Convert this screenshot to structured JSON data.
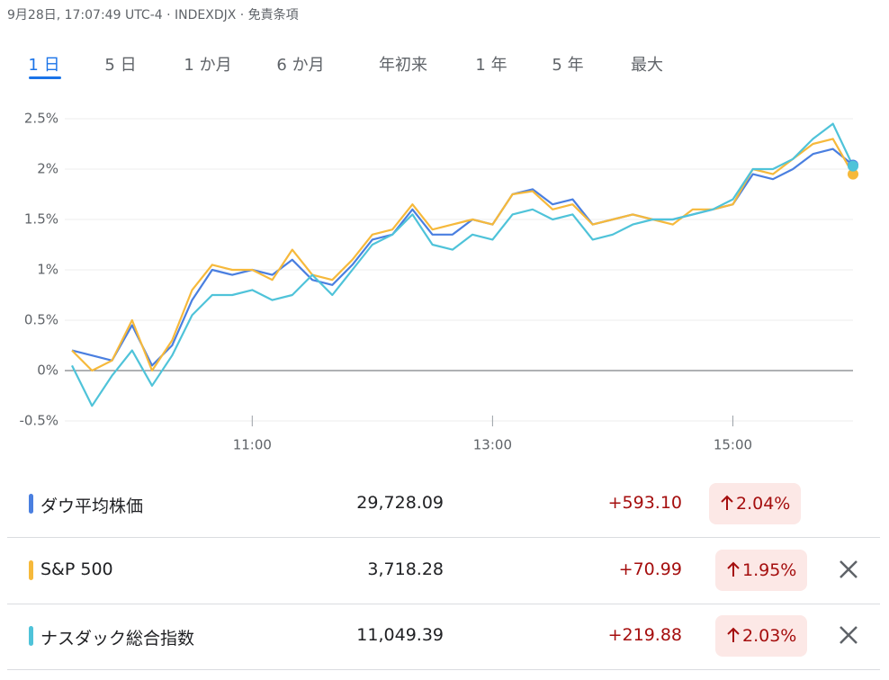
{
  "header": {
    "text": "9月28日, 17:07:49 UTC-4 · INDEXDJX · 免責条項"
  },
  "tabs": {
    "items": [
      "1 日",
      "5 日",
      "1 か月",
      "6 か月",
      "年初来",
      "1 年",
      "5 年",
      "最大"
    ],
    "selected": 0
  },
  "chart_data": {
    "type": "line",
    "x": [
      "9:30",
      "9:40",
      "9:50",
      "10:00",
      "10:10",
      "10:20",
      "10:30",
      "10:40",
      "10:50",
      "11:00",
      "11:10",
      "11:20",
      "11:30",
      "11:40",
      "11:50",
      "12:00",
      "12:10",
      "12:20",
      "12:30",
      "12:40",
      "12:50",
      "13:00",
      "13:10",
      "13:20",
      "13:30",
      "13:40",
      "13:50",
      "14:00",
      "14:10",
      "14:20",
      "14:30",
      "14:40",
      "14:50",
      "15:00",
      "15:10",
      "15:20",
      "15:30",
      "15:40",
      "15:50",
      "16:00"
    ],
    "xlim": [
      "9:30",
      "16:00"
    ],
    "xticks": [
      "11:00",
      "13:00",
      "15:00"
    ],
    "ylim": [
      -0.5,
      2.6
    ],
    "yticks": [
      {
        "value": -0.5,
        "label": "-0.5%"
      },
      {
        "value": 0,
        "label": "0%"
      },
      {
        "value": 0.5,
        "label": "0.5%"
      },
      {
        "value": 1,
        "label": "1%"
      },
      {
        "value": 1.5,
        "label": "1.5%"
      },
      {
        "value": 2,
        "label": "2%"
      },
      {
        "value": 2.5,
        "label": "2.5%"
      }
    ],
    "grid": true,
    "reference_line": 0,
    "series": [
      {
        "name": "ダウ平均株価",
        "color": "#4a7fe0",
        "values": [
          0.2,
          0.15,
          0.1,
          0.45,
          0.05,
          0.25,
          0.7,
          1.0,
          0.95,
          1.0,
          0.95,
          1.1,
          0.9,
          0.85,
          1.05,
          1.3,
          1.35,
          1.6,
          1.35,
          1.35,
          1.5,
          1.45,
          1.75,
          1.8,
          1.65,
          1.7,
          1.45,
          1.5,
          1.55,
          1.5,
          1.5,
          1.55,
          1.6,
          1.65,
          1.95,
          1.9,
          2.0,
          2.15,
          2.2,
          2.04
        ]
      },
      {
        "name": "S&P 500",
        "color": "#f6b93b",
        "values": [
          0.2,
          0.0,
          0.1,
          0.5,
          0.0,
          0.3,
          0.8,
          1.05,
          1.0,
          1.0,
          0.9,
          1.2,
          0.95,
          0.9,
          1.1,
          1.35,
          1.4,
          1.65,
          1.4,
          1.45,
          1.5,
          1.45,
          1.75,
          1.78,
          1.6,
          1.65,
          1.45,
          1.5,
          1.55,
          1.5,
          1.45,
          1.6,
          1.6,
          1.65,
          2.0,
          1.95,
          2.1,
          2.25,
          2.3,
          1.95
        ]
      },
      {
        "name": "ナスダック総合指数",
        "color": "#4fc3d9",
        "values": [
          0.05,
          -0.35,
          -0.05,
          0.2,
          -0.15,
          0.15,
          0.55,
          0.75,
          0.75,
          0.8,
          0.7,
          0.75,
          0.95,
          0.75,
          1.0,
          1.25,
          1.35,
          1.55,
          1.25,
          1.2,
          1.35,
          1.3,
          1.55,
          1.6,
          1.5,
          1.55,
          1.3,
          1.35,
          1.45,
          1.5,
          1.5,
          1.55,
          1.6,
          1.7,
          2.0,
          2.0,
          2.1,
          2.3,
          2.45,
          2.03
        ]
      }
    ]
  },
  "table": {
    "rows": [
      {
        "price": "29,728.09",
        "change": "+593.10",
        "percent": "2.04%",
        "removable": false
      },
      {
        "price": "3,718.28",
        "change": "+70.99",
        "percent": "1.95%",
        "removable": true
      },
      {
        "price": "11,049.39",
        "change": "+219.88",
        "percent": "2.03%",
        "removable": true
      }
    ]
  }
}
